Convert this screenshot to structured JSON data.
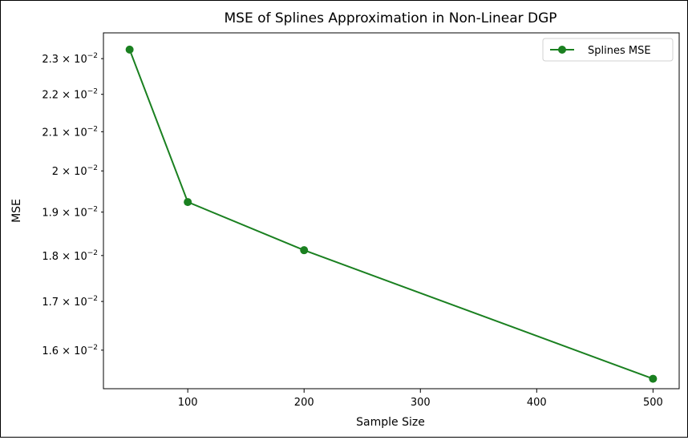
{
  "chart_data": {
    "type": "line",
    "title": "MSE of Splines Approximation in Non-Linear DGP",
    "xlabel": "Sample Size",
    "ylabel": "MSE",
    "x_scale": "linear",
    "y_scale": "log",
    "xlim": [
      27.5,
      522.5
    ],
    "ylim": [
      0.01525,
      0.02375
    ],
    "x_ticks": [
      {
        "value": 100,
        "label": "100"
      },
      {
        "value": 200,
        "label": "200"
      },
      {
        "value": 300,
        "label": "300"
      },
      {
        "value": 400,
        "label": "400"
      },
      {
        "value": 500,
        "label": "500"
      }
    ],
    "y_ticks": [
      {
        "value": 0.016,
        "mantissa": "1.6",
        "base": "10",
        "exp": "−2"
      },
      {
        "value": 0.017,
        "mantissa": "1.7",
        "base": "10",
        "exp": "−2"
      },
      {
        "value": 0.018,
        "mantissa": "1.8",
        "base": "10",
        "exp": "−2"
      },
      {
        "value": 0.019,
        "mantissa": "1.9",
        "base": "10",
        "exp": "−2"
      },
      {
        "value": 0.02,
        "mantissa": "2",
        "base": "10",
        "exp": "−2"
      },
      {
        "value": 0.021,
        "mantissa": "2.1",
        "base": "10",
        "exp": "−2"
      },
      {
        "value": 0.022,
        "mantissa": "2.2",
        "base": "10",
        "exp": "−2"
      },
      {
        "value": 0.023,
        "mantissa": "2.3",
        "base": "10",
        "exp": "−2"
      }
    ],
    "series": [
      {
        "name": "Splines MSE",
        "color": "#1a8020",
        "marker": "circle",
        "x": [
          50,
          100,
          200,
          500
        ],
        "y": [
          0.02326,
          0.01924,
          0.01812,
          0.01544
        ]
      }
    ],
    "legend": {
      "position": "upper-right"
    },
    "grid": false
  }
}
